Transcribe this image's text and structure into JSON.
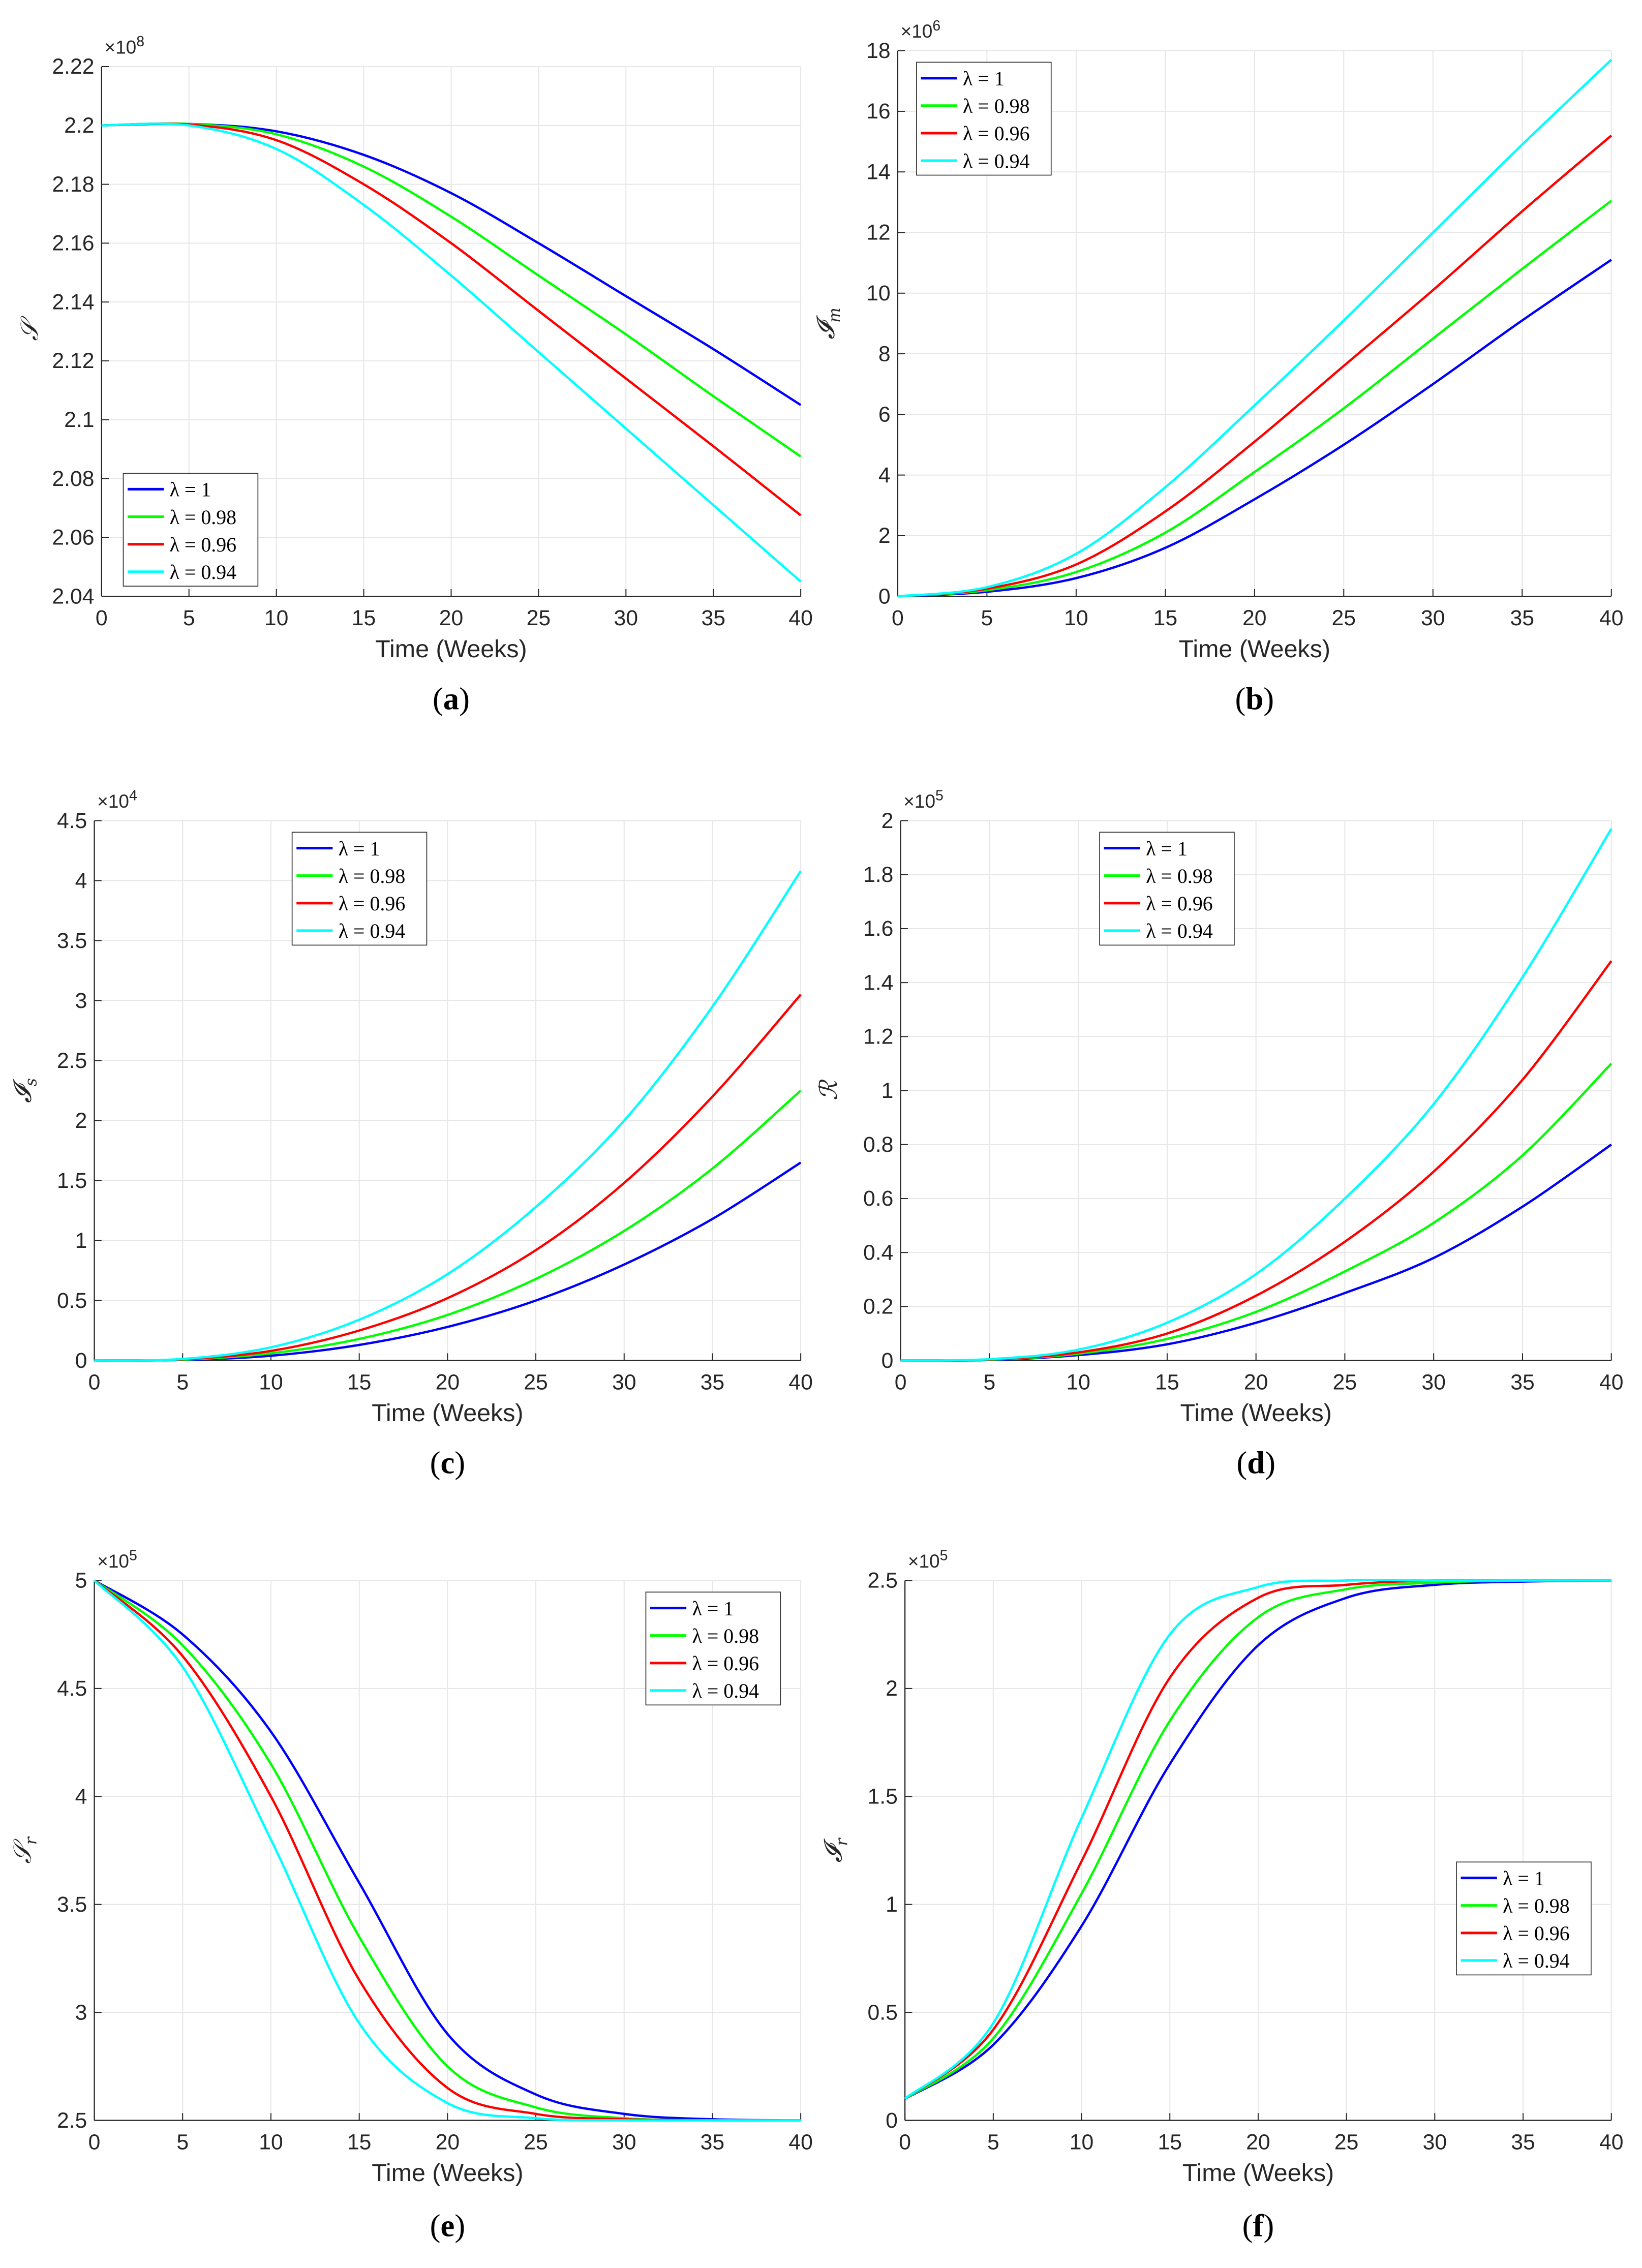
{
  "chart_data": [
    {
      "id": "a",
      "type": "line",
      "caption_letter": "a",
      "xlabel": "Time (Weeks)",
      "ylabel": "𝒮",
      "ylabel_sub": "",
      "multiplier": "×10",
      "multiplier_exp": "8",
      "xlim": [
        0,
        40
      ],
      "ylim": [
        2.04,
        2.22
      ],
      "xticks": [
        "0",
        "5",
        "10",
        "15",
        "20",
        "25",
        "30",
        "35",
        "40"
      ],
      "yticks": [
        "2.04",
        "2.06",
        "2.08",
        "2.1",
        "2.12",
        "2.14",
        "2.16",
        "2.18",
        "2.2",
        "2.22"
      ],
      "grid": true,
      "legend_placement": "bottom-left",
      "x": [
        0,
        5,
        10,
        15,
        20,
        25,
        30,
        35,
        40
      ],
      "series": [
        {
          "name": "λ = 1",
          "color": "#0000ff",
          "values": [
            2.2,
            2.2005,
            2.198,
            2.19,
            2.177,
            2.16,
            2.142,
            2.124,
            2.105
          ]
        },
        {
          "name": "λ = 0.98",
          "color": "#00ff00",
          "values": [
            2.2,
            2.2005,
            2.197,
            2.186,
            2.169,
            2.149,
            2.129,
            2.108,
            2.0875
          ]
        },
        {
          "name": "λ = 0.96",
          "color": "#ff0000",
          "values": [
            2.2,
            2.2003,
            2.195,
            2.18,
            2.16,
            2.137,
            2.114,
            2.091,
            2.0675
          ]
        },
        {
          "name": "λ = 0.94",
          "color": "#00ffff",
          "values": [
            2.2,
            2.2,
            2.192,
            2.173,
            2.149,
            2.123,
            2.097,
            2.071,
            2.045
          ]
        }
      ]
    },
    {
      "id": "b",
      "type": "line",
      "caption_letter": "b",
      "xlabel": "Time (Weeks)",
      "ylabel": "𝓘",
      "ylabel_sub": "m",
      "multiplier": "×10",
      "multiplier_exp": "6",
      "xlim": [
        0,
        40
      ],
      "ylim": [
        0,
        18
      ],
      "xticks": [
        "0",
        "5",
        "10",
        "15",
        "20",
        "25",
        "30",
        "35",
        "40"
      ],
      "yticks": [
        "0",
        "2",
        "4",
        "6",
        "8",
        "10",
        "12",
        "14",
        "16",
        "18"
      ],
      "grid": true,
      "legend_placement": "top-left",
      "x": [
        0,
        5,
        10,
        15,
        20,
        25,
        30,
        35,
        40
      ],
      "series": [
        {
          "name": "λ = 1",
          "color": "#0000ff",
          "values": [
            0,
            0.15,
            0.6,
            1.6,
            3.2,
            5.0,
            7.0,
            9.1,
            11.1
          ]
        },
        {
          "name": "λ = 0.98",
          "color": "#00ff00",
          "values": [
            0,
            0.2,
            0.8,
            2.1,
            4.1,
            6.2,
            8.5,
            10.8,
            13.05
          ]
        },
        {
          "name": "λ = 0.96",
          "color": "#ff0000",
          "values": [
            0,
            0.25,
            1.05,
            2.8,
            5.1,
            7.6,
            10.1,
            12.7,
            15.2
          ]
        },
        {
          "name": "λ = 0.94",
          "color": "#00ffff",
          "values": [
            0,
            0.3,
            1.4,
            3.6,
            6.3,
            9.1,
            12.0,
            14.9,
            17.7
          ]
        }
      ]
    },
    {
      "id": "c",
      "type": "line",
      "caption_letter": "c",
      "xlabel": "Time (Weeks)",
      "ylabel": "𝓘",
      "ylabel_sub": "s",
      "multiplier": "×10",
      "multiplier_exp": "4",
      "xlim": [
        0,
        40
      ],
      "ylim": [
        0,
        4.5
      ],
      "xticks": [
        "0",
        "5",
        "10",
        "15",
        "20",
        "25",
        "30",
        "35",
        "40"
      ],
      "yticks": [
        "0",
        "0.5",
        "1",
        "1.5",
        "2",
        "2.5",
        "3",
        "3.5",
        "4",
        "4.5"
      ],
      "grid": true,
      "legend_placement": "top-center",
      "x": [
        0,
        5,
        10,
        15,
        20,
        25,
        30,
        35,
        40
      ],
      "series": [
        {
          "name": "λ = 1",
          "color": "#0000ff",
          "values": [
            0,
            0.005,
            0.04,
            0.13,
            0.28,
            0.5,
            0.8,
            1.18,
            1.65
          ]
        },
        {
          "name": "λ = 0.98",
          "color": "#00ff00",
          "values": [
            0,
            0.007,
            0.06,
            0.18,
            0.38,
            0.68,
            1.08,
            1.6,
            2.25
          ]
        },
        {
          "name": "λ = 0.96",
          "color": "#ff0000",
          "values": [
            0,
            0.01,
            0.08,
            0.25,
            0.52,
            0.92,
            1.48,
            2.2,
            3.05
          ]
        },
        {
          "name": "λ = 0.94",
          "color": "#00ffff",
          "values": [
            0,
            0.013,
            0.11,
            0.34,
            0.72,
            1.28,
            2.0,
            2.95,
            4.08
          ]
        }
      ]
    },
    {
      "id": "d",
      "type": "line",
      "caption_letter": "d",
      "xlabel": "Time (Weeks)",
      "ylabel": "ℛ",
      "ylabel_sub": "",
      "multiplier": "×10",
      "multiplier_exp": "5",
      "xlim": [
        0,
        40
      ],
      "ylim": [
        0,
        2
      ],
      "xticks": [
        "0",
        "5",
        "10",
        "15",
        "20",
        "25",
        "30",
        "35",
        "40"
      ],
      "yticks": [
        "0",
        "0.2",
        "0.4",
        "0.6",
        "0.8",
        "1",
        "1.2",
        "1.4",
        "1.6",
        "1.8",
        "2"
      ],
      "grid": true,
      "legend_placement": "top-center",
      "x": [
        0,
        5,
        10,
        15,
        20,
        25,
        30,
        35,
        40
      ],
      "series": [
        {
          "name": "λ = 1",
          "color": "#0000ff",
          "values": [
            0,
            0.002,
            0.02,
            0.06,
            0.14,
            0.25,
            0.38,
            0.57,
            0.8
          ]
        },
        {
          "name": "λ = 0.98",
          "color": "#00ff00",
          "values": [
            0,
            0.003,
            0.025,
            0.08,
            0.18,
            0.33,
            0.51,
            0.76,
            1.1
          ]
        },
        {
          "name": "λ = 0.96",
          "color": "#ff0000",
          "values": [
            0,
            0.004,
            0.03,
            0.1,
            0.24,
            0.44,
            0.7,
            1.04,
            1.48
          ]
        },
        {
          "name": "λ = 0.94",
          "color": "#00ffff",
          "values": [
            0,
            0.005,
            0.04,
            0.14,
            0.32,
            0.6,
            0.95,
            1.42,
            1.97
          ]
        }
      ]
    },
    {
      "id": "e",
      "type": "line",
      "caption_letter": "e",
      "xlabel": "Time (Weeks)",
      "ylabel": "𝒮",
      "ylabel_sub": "r",
      "multiplier": "×10",
      "multiplier_exp": "5",
      "xlim": [
        0,
        40
      ],
      "ylim": [
        2.5,
        5
      ],
      "xticks": [
        "0",
        "5",
        "10",
        "15",
        "20",
        "25",
        "30",
        "35",
        "40"
      ],
      "yticks": [
        "2.5",
        "3",
        "3.5",
        "4",
        "4.5",
        "5"
      ],
      "grid": true,
      "legend_placement": "top-right",
      "x": [
        0,
        5,
        10,
        15,
        20,
        25,
        30,
        35,
        40
      ],
      "series": [
        {
          "name": "λ = 1",
          "color": "#0000ff",
          "values": [
            5,
            4.75,
            4.3,
            3.6,
            2.9,
            2.62,
            2.53,
            2.505,
            2.5
          ]
        },
        {
          "name": "λ = 0.98",
          "color": "#00ff00",
          "values": [
            5,
            4.7,
            4.15,
            3.35,
            2.75,
            2.56,
            2.51,
            2.5,
            2.5
          ]
        },
        {
          "name": "λ = 0.96",
          "color": "#ff0000",
          "values": [
            5,
            4.65,
            4.0,
            3.15,
            2.65,
            2.53,
            2.505,
            2.5,
            2.5
          ]
        },
        {
          "name": "λ = 0.94",
          "color": "#00ffff",
          "values": [
            5,
            4.6,
            3.8,
            2.95,
            2.58,
            2.51,
            2.5,
            2.5,
            2.5
          ]
        }
      ]
    },
    {
      "id": "f",
      "type": "line",
      "caption_letter": "f",
      "xlabel": "Time (Weeks)",
      "ylabel": "𝓘",
      "ylabel_sub": "r",
      "multiplier": "×10",
      "multiplier_exp": "5",
      "xlim": [
        0,
        40
      ],
      "ylim": [
        0,
        2.5
      ],
      "xticks": [
        "0",
        "5",
        "10",
        "15",
        "20",
        "25",
        "30",
        "35",
        "40"
      ],
      "yticks": [
        "0",
        "0.5",
        "1",
        "1.5",
        "2",
        "2.5"
      ],
      "grid": true,
      "legend_placement": "center-right",
      "x": [
        0,
        5,
        10,
        15,
        20,
        25,
        30,
        35,
        40
      ],
      "series": [
        {
          "name": "λ = 1",
          "color": "#0000ff",
          "values": [
            0.1,
            0.35,
            0.9,
            1.65,
            2.2,
            2.42,
            2.48,
            2.495,
            2.5
          ]
        },
        {
          "name": "λ = 0.98",
          "color": "#00ff00",
          "values": [
            0.1,
            0.38,
            1.05,
            1.85,
            2.33,
            2.46,
            2.49,
            2.5,
            2.5
          ]
        },
        {
          "name": "λ = 0.96",
          "color": "#ff0000",
          "values": [
            0.1,
            0.42,
            1.2,
            2.05,
            2.42,
            2.48,
            2.5,
            2.5,
            2.5
          ]
        },
        {
          "name": "λ = 0.94",
          "color": "#00ffff",
          "values": [
            0.1,
            0.45,
            1.4,
            2.25,
            2.47,
            2.5,
            2.5,
            2.5,
            2.5
          ]
        }
      ]
    }
  ]
}
